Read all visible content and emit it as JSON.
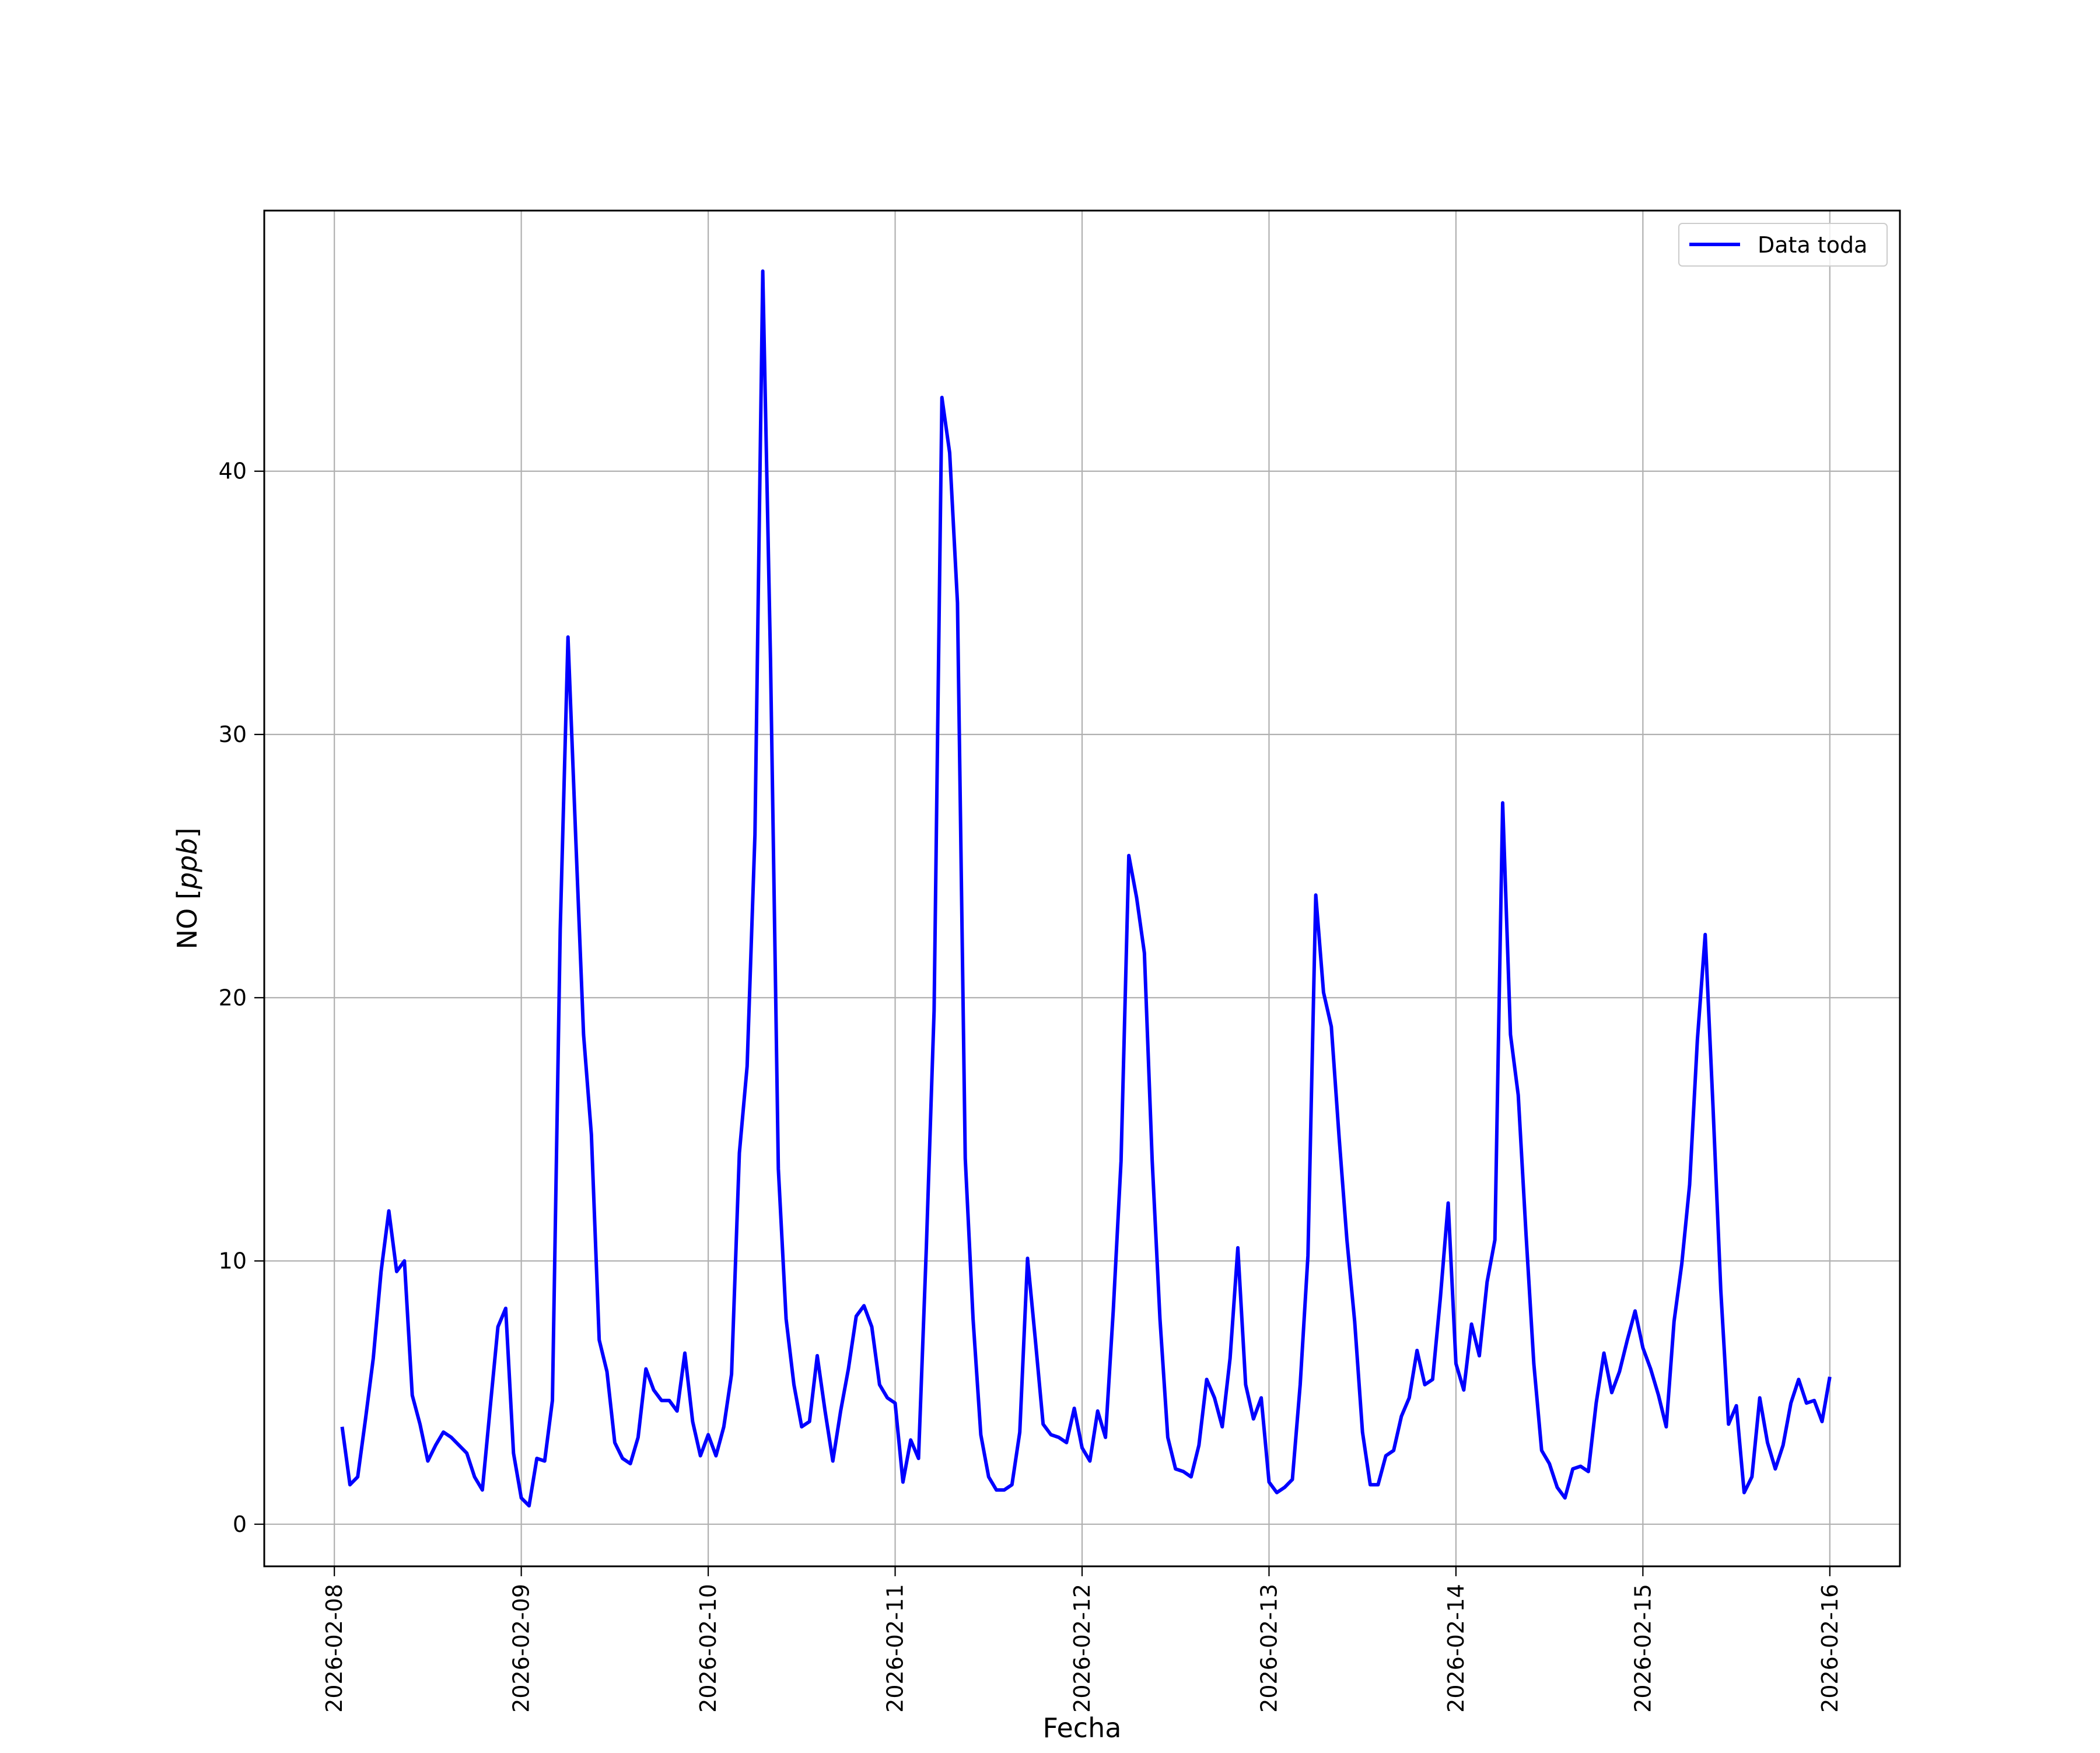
{
  "chart_data": {
    "type": "line",
    "title": "",
    "xlabel": "Fecha",
    "ylabel_prefix": "NO [",
    "ylabel_unit": "ppb",
    "ylabel_suffix": "]",
    "xlim": [
      "2026-02-07T15:00",
      "2026-02-16T09:00"
    ],
    "ylim": [
      -1.6,
      49.9
    ],
    "x_ticks": [
      "2026-02-08",
      "2026-02-09",
      "2026-02-10",
      "2026-02-11",
      "2026-02-12",
      "2026-02-13",
      "2026-02-14",
      "2026-02-15",
      "2026-02-16"
    ],
    "y_ticks": [
      0,
      10,
      20,
      30,
      40
    ],
    "grid": true,
    "legend": {
      "placement": "top-right",
      "entries": [
        "Data toda"
      ]
    },
    "line_color": "#0000ff",
    "series": [
      {
        "name": "Data toda",
        "x": [
          "2026-02-08T01:00",
          "2026-02-08T02:00",
          "2026-02-08T03:00",
          "2026-02-08T04:00",
          "2026-02-08T05:00",
          "2026-02-08T06:00",
          "2026-02-08T07:00",
          "2026-02-08T08:00",
          "2026-02-08T09:00",
          "2026-02-08T10:00",
          "2026-02-08T11:00",
          "2026-02-08T12:00",
          "2026-02-08T13:00",
          "2026-02-08T14:00",
          "2026-02-08T15:00",
          "2026-02-08T16:00",
          "2026-02-08T17:00",
          "2026-02-08T18:00",
          "2026-02-08T19:00",
          "2026-02-08T20:00",
          "2026-02-08T21:00",
          "2026-02-08T22:00",
          "2026-02-08T23:00",
          "2026-02-09T00:00",
          "2026-02-09T01:00",
          "2026-02-09T02:00",
          "2026-02-09T03:00",
          "2026-02-09T04:00",
          "2026-02-09T05:00",
          "2026-02-09T06:00",
          "2026-02-09T07:00",
          "2026-02-09T08:00",
          "2026-02-09T09:00",
          "2026-02-09T10:00",
          "2026-02-09T11:00",
          "2026-02-09T12:00",
          "2026-02-09T13:00",
          "2026-02-09T14:00",
          "2026-02-09T15:00",
          "2026-02-09T16:00",
          "2026-02-09T17:00",
          "2026-02-09T18:00",
          "2026-02-09T19:00",
          "2026-02-09T20:00",
          "2026-02-09T21:00",
          "2026-02-09T22:00",
          "2026-02-09T23:00",
          "2026-02-10T00:00",
          "2026-02-10T01:00",
          "2026-02-10T02:00",
          "2026-02-10T03:00",
          "2026-02-10T04:00",
          "2026-02-10T05:00",
          "2026-02-10T06:00",
          "2026-02-10T07:00",
          "2026-02-10T08:00",
          "2026-02-10T09:00",
          "2026-02-10T10:00",
          "2026-02-10T11:00",
          "2026-02-10T12:00",
          "2026-02-10T13:00",
          "2026-02-10T14:00",
          "2026-02-10T15:00",
          "2026-02-10T16:00",
          "2026-02-10T17:00",
          "2026-02-10T18:00",
          "2026-02-10T19:00",
          "2026-02-10T20:00",
          "2026-02-10T21:00",
          "2026-02-10T22:00",
          "2026-02-10T23:00",
          "2026-02-11T00:00",
          "2026-02-11T01:00",
          "2026-02-11T02:00",
          "2026-02-11T03:00",
          "2026-02-11T04:00",
          "2026-02-11T05:00",
          "2026-02-11T06:00",
          "2026-02-11T07:00",
          "2026-02-11T08:00",
          "2026-02-11T09:00",
          "2026-02-11T10:00",
          "2026-02-11T11:00",
          "2026-02-11T12:00",
          "2026-02-11T13:00",
          "2026-02-11T14:00",
          "2026-02-11T15:00",
          "2026-02-11T16:00",
          "2026-02-11T17:00",
          "2026-02-11T18:00",
          "2026-02-11T19:00",
          "2026-02-11T20:00",
          "2026-02-11T21:00",
          "2026-02-11T22:00",
          "2026-02-11T23:00",
          "2026-02-12T00:00",
          "2026-02-12T01:00",
          "2026-02-12T02:00",
          "2026-02-12T03:00",
          "2026-02-12T04:00",
          "2026-02-12T05:00",
          "2026-02-12T06:00",
          "2026-02-12T07:00",
          "2026-02-12T08:00",
          "2026-02-12T09:00",
          "2026-02-12T10:00",
          "2026-02-12T11:00",
          "2026-02-12T12:00",
          "2026-02-12T13:00",
          "2026-02-12T14:00",
          "2026-02-12T15:00",
          "2026-02-12T16:00",
          "2026-02-12T17:00",
          "2026-02-12T18:00",
          "2026-02-12T19:00",
          "2026-02-12T20:00",
          "2026-02-12T21:00",
          "2026-02-12T22:00",
          "2026-02-12T23:00",
          "2026-02-13T00:00",
          "2026-02-13T01:00",
          "2026-02-13T02:00",
          "2026-02-13T03:00",
          "2026-02-13T04:00",
          "2026-02-13T05:00",
          "2026-02-13T06:00",
          "2026-02-13T07:00",
          "2026-02-13T08:00",
          "2026-02-13T09:00",
          "2026-02-13T10:00",
          "2026-02-13T11:00",
          "2026-02-13T12:00",
          "2026-02-13T13:00",
          "2026-02-13T14:00",
          "2026-02-13T15:00",
          "2026-02-13T16:00",
          "2026-02-13T17:00",
          "2026-02-13T18:00",
          "2026-02-13T19:00",
          "2026-02-13T20:00",
          "2026-02-13T21:00",
          "2026-02-13T22:00",
          "2026-02-13T23:00",
          "2026-02-14T00:00",
          "2026-02-14T01:00",
          "2026-02-14T02:00",
          "2026-02-14T03:00",
          "2026-02-14T04:00",
          "2026-02-14T05:00",
          "2026-02-14T06:00",
          "2026-02-14T07:00",
          "2026-02-14T08:00",
          "2026-02-14T09:00",
          "2026-02-14T10:00",
          "2026-02-14T11:00",
          "2026-02-14T12:00",
          "2026-02-14T13:00",
          "2026-02-14T14:00",
          "2026-02-14T15:00",
          "2026-02-14T16:00",
          "2026-02-14T17:00",
          "2026-02-14T18:00",
          "2026-02-14T19:00",
          "2026-02-14T20:00",
          "2026-02-14T21:00",
          "2026-02-14T22:00",
          "2026-02-14T23:00",
          "2026-02-15T00:00",
          "2026-02-15T01:00",
          "2026-02-15T02:00",
          "2026-02-15T03:00",
          "2026-02-15T04:00",
          "2026-02-15T05:00",
          "2026-02-15T06:00",
          "2026-02-15T07:00",
          "2026-02-15T08:00",
          "2026-02-15T09:00",
          "2026-02-15T10:00",
          "2026-02-15T11:00",
          "2026-02-15T12:00",
          "2026-02-15T13:00",
          "2026-02-15T14:00",
          "2026-02-15T15:00",
          "2026-02-15T16:00",
          "2026-02-15T17:00",
          "2026-02-15T18:00",
          "2026-02-15T19:00",
          "2026-02-15T20:00",
          "2026-02-15T21:00",
          "2026-02-15T22:00",
          "2026-02-15T23:00",
          "2026-02-16T00:00"
        ],
        "values": [
          3.7,
          1.5,
          1.8,
          4.0,
          6.3,
          9.6,
          11.9,
          9.6,
          10.0,
          4.9,
          3.8,
          2.4,
          3.0,
          3.5,
          3.3,
          3.0,
          2.7,
          1.8,
          1.3,
          4.4,
          7.5,
          8.2,
          2.7,
          1.0,
          0.7,
          2.5,
          2.4,
          4.7,
          22.6,
          33.7,
          26.0,
          18.6,
          14.8,
          7.0,
          5.8,
          3.1,
          2.5,
          2.3,
          3.3,
          5.9,
          5.1,
          4.7,
          4.7,
          4.3,
          6.5,
          3.9,
          2.6,
          3.4,
          2.6,
          3.7,
          5.7,
          14.1,
          17.4,
          26.2,
          47.6,
          32.8,
          13.5,
          7.8,
          5.3,
          3.7,
          3.9,
          6.4,
          4.3,
          2.4,
          4.3,
          5.9,
          7.9,
          8.3,
          7.5,
          5.3,
          4.8,
          4.6,
          1.6,
          3.2,
          2.5,
          10.5,
          19.5,
          42.8,
          40.7,
          35.0,
          13.9,
          7.8,
          3.4,
          1.8,
          1.3,
          1.3,
          1.5,
          3.5,
          10.1,
          7.0,
          3.8,
          3.4,
          3.3,
          3.1,
          4.4,
          2.9,
          2.4,
          4.3,
          3.3,
          8.1,
          13.8,
          25.4,
          23.8,
          21.7,
          13.8,
          7.8,
          3.3,
          2.1,
          2.0,
          1.8,
          3.0,
          5.5,
          4.8,
          3.7,
          6.3,
          10.5,
          5.3,
          4.0,
          4.8,
          1.6,
          1.2,
          1.4,
          1.7,
          5.3,
          10.2,
          23.9,
          20.2,
          18.9,
          14.7,
          10.8,
          7.7,
          3.5,
          1.5,
          1.5,
          2.6,
          2.8,
          4.1,
          4.8,
          6.6,
          5.3,
          5.5,
          8.6,
          12.2,
          6.1,
          5.1,
          7.6,
          6.4,
          9.2,
          10.8,
          27.4,
          18.6,
          16.3,
          11.0,
          6.1,
          2.8,
          2.3,
          1.4,
          1.0,
          2.1,
          2.2,
          2.0,
          4.6,
          6.5,
          5.0,
          5.8,
          7.0,
          8.1,
          6.7,
          5.9,
          4.9,
          3.7,
          7.7,
          9.9,
          12.9,
          18.4,
          22.4,
          15.9,
          8.9,
          3.8,
          4.5,
          1.2,
          1.8,
          4.8,
          3.1,
          2.1,
          3.0,
          4.6,
          5.5,
          4.6,
          4.7,
          3.9,
          5.6
        ]
      }
    ]
  }
}
